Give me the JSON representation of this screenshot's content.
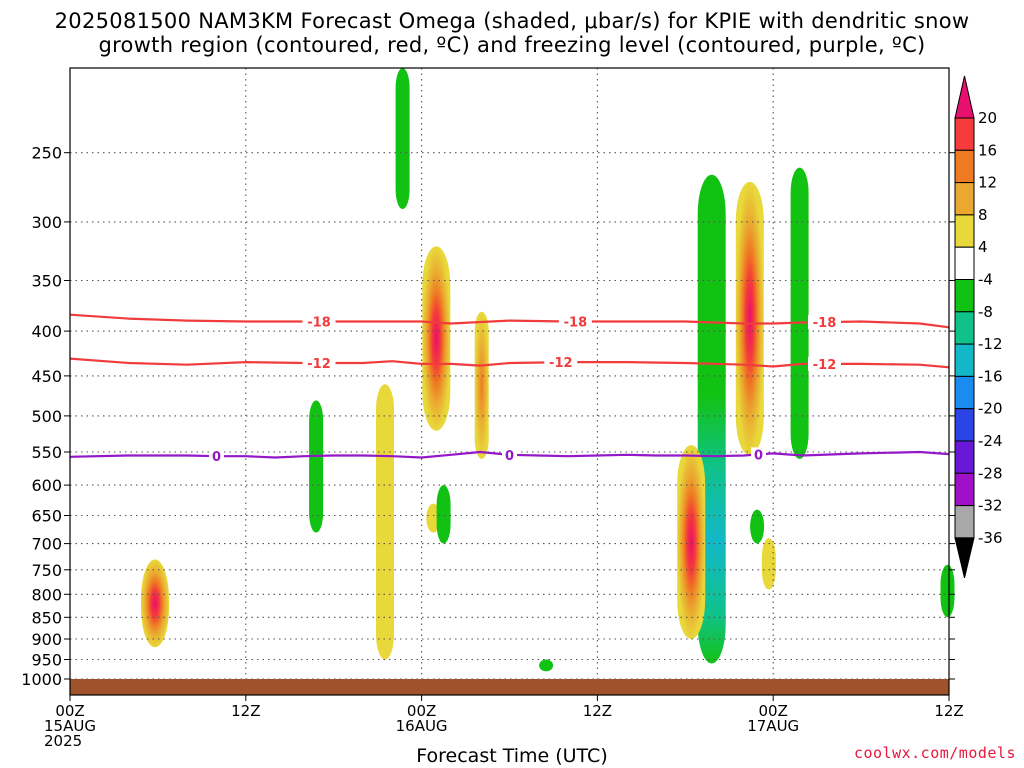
{
  "title_line1": "2025081500 NAM3KM Forecast Omega (shaded, μbar/s) for KPIE with dendritic snow",
  "title_line2": "growth region (contoured, red, ºC) and freezing level (contoured, purple, ºC)",
  "footer": "coolwx.com/models",
  "chart_data": {
    "type": "contour",
    "title": "2025081500 NAM3KM Forecast Omega (shaded, μbar/s) for KPIE with dendritic snow growth region (contoured, red, ºC) and freezing level (contoured, purple, ºC)",
    "xlabel": "Forecast Time (UTC)",
    "ylabel": "",
    "x_range_hours": [
      0,
      60
    ],
    "y_range_hpa": [
      1000,
      200
    ],
    "y_scale": "log-pressure",
    "x_ticks": [
      {
        "hour": 0,
        "lines": [
          "00Z",
          "15AUG",
          "2025"
        ]
      },
      {
        "hour": 12,
        "lines": [
          "12Z"
        ]
      },
      {
        "hour": 24,
        "lines": [
          "00Z",
          "16AUG"
        ]
      },
      {
        "hour": 36,
        "lines": [
          "12Z"
        ]
      },
      {
        "hour": 48,
        "lines": [
          "00Z",
          "17AUG"
        ]
      },
      {
        "hour": 60,
        "lines": [
          "12Z"
        ]
      }
    ],
    "y_ticks": [
      250,
      300,
      350,
      400,
      450,
      500,
      550,
      600,
      650,
      700,
      750,
      800,
      850,
      900,
      950,
      1000
    ],
    "grid": true,
    "colorbar": {
      "labels": [
        "20",
        "16",
        "12",
        "8",
        "4",
        "-4",
        "-8",
        "-12",
        "-16",
        "-20",
        "-24",
        "-28",
        "-32",
        "-36"
      ],
      "colors": [
        "#e8106e",
        "#f53b3b",
        "#ee7b22",
        "#eaa830",
        "#e8d83a",
        "#ffffff",
        "#12c212",
        "#10c28a",
        "#12b8c8",
        "#1a8cf0",
        "#2a44e6",
        "#6a18d8",
        "#a010c8",
        "#a8a8a8",
        "#000000"
      ]
    },
    "contours": [
      {
        "name": "-18",
        "color": "#f03c3c",
        "label_hours": [
          17,
          34.5,
          51.5
        ],
        "points": [
          [
            0,
            383
          ],
          [
            4,
            387
          ],
          [
            8,
            389
          ],
          [
            12,
            390
          ],
          [
            16,
            390
          ],
          [
            20,
            390
          ],
          [
            24,
            390
          ],
          [
            26,
            392
          ],
          [
            30,
            389
          ],
          [
            34,
            390
          ],
          [
            38,
            390
          ],
          [
            42,
            390
          ],
          [
            46,
            392
          ],
          [
            48,
            392
          ],
          [
            50,
            391
          ],
          [
            54,
            390
          ],
          [
            58,
            392
          ],
          [
            60,
            396
          ]
        ]
      },
      {
        "name": "-12",
        "color": "#f03c3c",
        "label_hours": [
          17,
          33.5,
          51.5
        ],
        "points": [
          [
            0,
            430
          ],
          [
            4,
            435
          ],
          [
            8,
            437
          ],
          [
            12,
            434
          ],
          [
            16,
            435
          ],
          [
            20,
            435
          ],
          [
            22,
            433
          ],
          [
            24,
            436
          ],
          [
            26,
            436
          ],
          [
            28,
            438
          ],
          [
            30,
            435
          ],
          [
            34,
            434
          ],
          [
            38,
            434
          ],
          [
            42,
            435
          ],
          [
            46,
            437
          ],
          [
            48,
            439
          ],
          [
            50,
            436
          ],
          [
            54,
            436
          ],
          [
            58,
            437
          ],
          [
            60,
            440
          ]
        ]
      },
      {
        "name": "0",
        "color": "#9418c8",
        "label_hours": [
          10,
          30,
          47
        ],
        "points": [
          [
            0,
            557
          ],
          [
            4,
            555
          ],
          [
            8,
            555
          ],
          [
            10,
            556
          ],
          [
            12,
            556
          ],
          [
            14,
            558
          ],
          [
            16,
            556
          ],
          [
            18,
            555
          ],
          [
            20,
            555
          ],
          [
            22,
            556
          ],
          [
            24,
            558
          ],
          [
            26,
            554
          ],
          [
            28,
            550
          ],
          [
            30,
            554
          ],
          [
            32,
            555
          ],
          [
            34,
            556
          ],
          [
            36,
            555
          ],
          [
            38,
            554
          ],
          [
            40,
            555
          ],
          [
            42,
            555
          ],
          [
            44,
            556
          ],
          [
            46,
            555
          ],
          [
            48,
            552
          ],
          [
            50,
            555
          ],
          [
            54,
            552
          ],
          [
            58,
            550
          ],
          [
            60,
            553
          ]
        ]
      }
    ],
    "omega_regions": [
      {
        "center_hour": 5.8,
        "hpa_top": 730,
        "hpa_bottom": 920,
        "value": 8,
        "peak": 16
      },
      {
        "center_hour": 16.8,
        "hpa_top": 480,
        "hpa_bottom": 680,
        "value": -8
      },
      {
        "center_hour": 21.5,
        "hpa_top": 460,
        "hpa_bottom": 950,
        "value": 4
      },
      {
        "center_hour": 22.7,
        "hpa_top": 200,
        "hpa_bottom": 290,
        "value": -8
      },
      {
        "center_hour": 24.8,
        "hpa_top": 630,
        "hpa_bottom": 680,
        "value": 4
      },
      {
        "center_hour": 25,
        "hpa_top": 320,
        "hpa_bottom": 520,
        "value": 8,
        "peak": 20
      },
      {
        "center_hour": 25.5,
        "hpa_top": 600,
        "hpa_bottom": 700,
        "value": -8
      },
      {
        "center_hour": 28.1,
        "hpa_top": 380,
        "hpa_bottom": 560,
        "value": 4,
        "peak": 12
      },
      {
        "center_hour": 32.5,
        "hpa_top": 950,
        "hpa_bottom": 980,
        "value": -8
      },
      {
        "center_hour": 43.8,
        "hpa_top": 265,
        "hpa_bottom": 960,
        "value": -8,
        "peak": -16
      },
      {
        "center_hour": 42.4,
        "hpa_top": 540,
        "hpa_bottom": 900,
        "value": 8,
        "peak": 16
      },
      {
        "center_hour": 46.4,
        "hpa_top": 270,
        "hpa_bottom": 555,
        "value": 8,
        "peak": 20
      },
      {
        "center_hour": 47.7,
        "hpa_top": 690,
        "hpa_bottom": 790,
        "value": 4
      },
      {
        "center_hour": 46.9,
        "hpa_top": 640,
        "hpa_bottom": 700,
        "value": -8
      },
      {
        "center_hour": 49.8,
        "hpa_top": 260,
        "hpa_bottom": 560,
        "value": -8
      },
      {
        "center_hour": 59.9,
        "hpa_top": 740,
        "hpa_bottom": 850,
        "value": -8
      }
    ],
    "legend": "colorbar-right"
  }
}
